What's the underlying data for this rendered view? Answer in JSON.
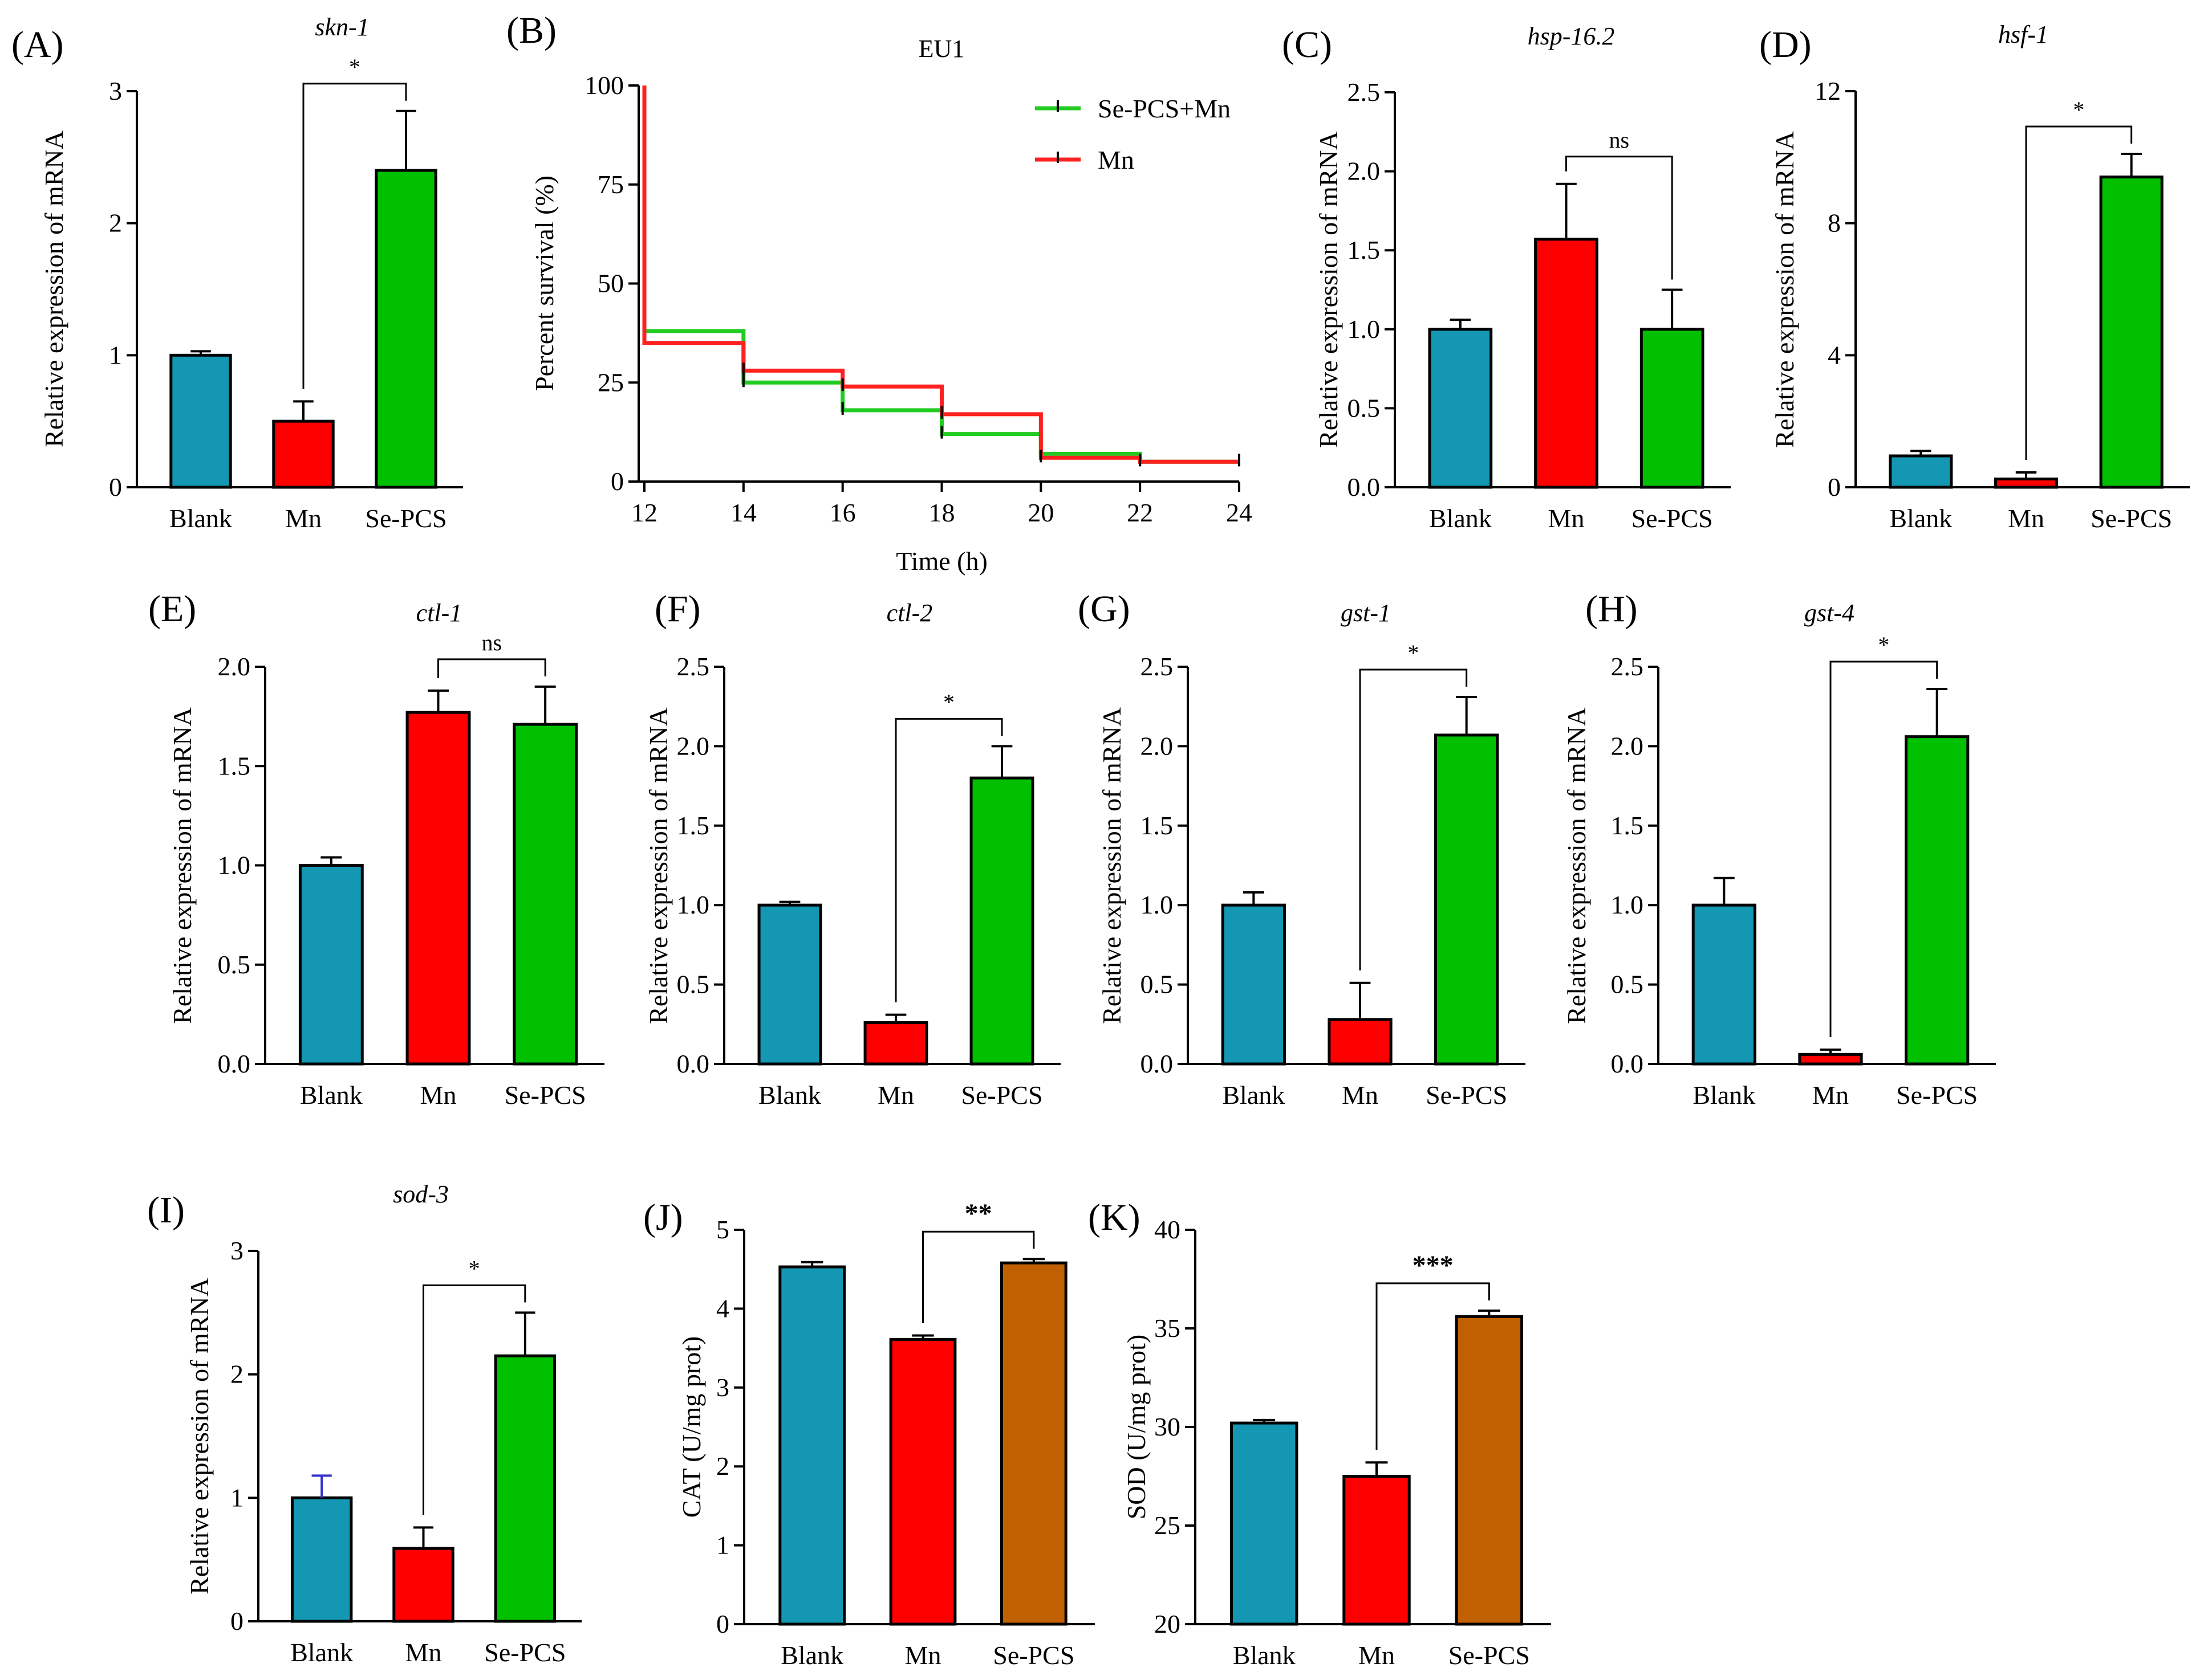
{
  "figure": {
    "colors": {
      "blank": "#1497b2",
      "mn": "#ff0000",
      "sepcs": "#00c000",
      "sepcs_brown": "#c06000",
      "survival_sepcs": "#22cc22",
      "survival_mn": "#ff2020",
      "outline": "#000000"
    }
  },
  "chart_data": [
    {
      "id": "A",
      "type": "bar",
      "panel_label": "(A)",
      "title": "skn-1",
      "title_italic": true,
      "ylabel": "Relative expression of mRNA",
      "ylim": [
        0,
        3
      ],
      "yticks": [
        "0",
        "1",
        "2",
        "3"
      ],
      "ytick_values": [
        0,
        1,
        2,
        3
      ],
      "categories": [
        "Blank",
        "Mn",
        "Se-PCS"
      ],
      "values": [
        1.0,
        0.5,
        2.4
      ],
      "errors": [
        0.03,
        0.15,
        0.45
      ],
      "colors": [
        "#1497b2",
        "#ff0000",
        "#00c000"
      ],
      "comparison": {
        "from": 1,
        "to": 2,
        "label": "*"
      }
    },
    {
      "id": "B",
      "type": "line",
      "panel_label": "(B)",
      "title": "EU1",
      "xlabel": "Time (h)",
      "ylabel": "Percent survival (%)",
      "xlim": [
        12,
        24
      ],
      "ylim": [
        0,
        100
      ],
      "xticks": [
        "12",
        "14",
        "16",
        "18",
        "20",
        "22",
        "24"
      ],
      "xtick_values": [
        12,
        14,
        16,
        18,
        20,
        22,
        24
      ],
      "yticks": [
        "0",
        "25",
        "50",
        "75",
        "100"
      ],
      "ytick_values": [
        0,
        25,
        50,
        75,
        100
      ],
      "series": [
        {
          "name": "Se-PCS+Mn",
          "color": "#22cc22",
          "x": [
            12,
            12,
            14,
            16,
            18,
            20,
            22,
            24
          ],
          "y": [
            100,
            38,
            25,
            18,
            12,
            7,
            5,
            5
          ]
        },
        {
          "name": "Mn",
          "color": "#ff2020",
          "x": [
            12,
            12,
            14,
            16,
            18,
            20,
            22,
            24
          ],
          "y": [
            100,
            35,
            28,
            24,
            17,
            6,
            5,
            5
          ]
        }
      ]
    },
    {
      "id": "C",
      "type": "bar",
      "panel_label": "(C)",
      "title": "hsp-16.2",
      "title_italic": true,
      "ylabel": "Relative expression of mRNA",
      "ylim": [
        0,
        2.5
      ],
      "yticks": [
        "0.0",
        "0.5",
        "1.0",
        "1.5",
        "2.0",
        "2.5"
      ],
      "ytick_values": [
        0,
        0.5,
        1,
        1.5,
        2,
        2.5
      ],
      "categories": [
        "Blank",
        "Mn",
        "Se-PCS"
      ],
      "values": [
        1.0,
        1.57,
        1.0
      ],
      "errors": [
        0.06,
        0.35,
        0.25
      ],
      "colors": [
        "#1497b2",
        "#ff0000",
        "#00c000"
      ],
      "comparison": {
        "from": 1,
        "to": 2,
        "label": "ns"
      }
    },
    {
      "id": "D",
      "type": "bar",
      "panel_label": "(D)",
      "title": "hsf-1",
      "title_italic": true,
      "ylabel": "Relative expression of mRNA",
      "ylim": [
        0,
        12
      ],
      "yticks": [
        "0",
        "4",
        "8",
        "12"
      ],
      "ytick_values": [
        0,
        4,
        8,
        12
      ],
      "categories": [
        "Blank",
        "Mn",
        "Se-PCS"
      ],
      "values": [
        0.95,
        0.25,
        9.4
      ],
      "errors": [
        0.15,
        0.2,
        0.7
      ],
      "colors": [
        "#1497b2",
        "#ff0000",
        "#00c000"
      ],
      "comparison": {
        "from": 1,
        "to": 2,
        "label": "*"
      }
    },
    {
      "id": "E",
      "type": "bar",
      "panel_label": "(E)",
      "title": "ctl-1",
      "title_italic": true,
      "ylabel": "Relative expression of mRNA",
      "ylim": [
        0,
        2.0
      ],
      "yticks": [
        "0.0",
        "0.5",
        "1.0",
        "1.5",
        "2.0"
      ],
      "ytick_values": [
        0,
        0.5,
        1,
        1.5,
        2
      ],
      "categories": [
        "Blank",
        "Mn",
        "Se-PCS"
      ],
      "values": [
        1.0,
        1.77,
        1.71
      ],
      "errors": [
        0.04,
        0.11,
        0.19
      ],
      "colors": [
        "#1497b2",
        "#ff0000",
        "#00c000"
      ],
      "comparison": {
        "from": 1,
        "to": 2,
        "label": "ns"
      }
    },
    {
      "id": "F",
      "type": "bar",
      "panel_label": "(F)",
      "title": "ctl-2",
      "title_italic": true,
      "ylabel": "Relative expression of mRNA",
      "ylim": [
        0,
        2.5
      ],
      "yticks": [
        "0.0",
        "0.5",
        "1.0",
        "1.5",
        "2.0",
        "2.5"
      ],
      "ytick_values": [
        0,
        0.5,
        1,
        1.5,
        2,
        2.5
      ],
      "categories": [
        "Blank",
        "Mn",
        "Se-PCS"
      ],
      "values": [
        1.0,
        0.26,
        1.8
      ],
      "errors": [
        0.02,
        0.05,
        0.2
      ],
      "colors": [
        "#1497b2",
        "#ff0000",
        "#00c000"
      ],
      "comparison": {
        "from": 1,
        "to": 2,
        "label": "*"
      }
    },
    {
      "id": "G",
      "type": "bar",
      "panel_label": "(G)",
      "title": "gst-1",
      "title_italic": true,
      "ylabel": "Relative expression of mRNA",
      "ylim": [
        0,
        2.5
      ],
      "yticks": [
        "0.0",
        "0.5",
        "1.0",
        "1.5",
        "2.0",
        "2.5"
      ],
      "ytick_values": [
        0,
        0.5,
        1,
        1.5,
        2,
        2.5
      ],
      "categories": [
        "Blank",
        "Mn",
        "Se-PCS"
      ],
      "values": [
        1.0,
        0.28,
        2.07
      ],
      "errors": [
        0.08,
        0.23,
        0.24
      ],
      "colors": [
        "#1497b2",
        "#ff0000",
        "#00c000"
      ],
      "comparison": {
        "from": 1,
        "to": 2,
        "label": "*"
      }
    },
    {
      "id": "H",
      "type": "bar",
      "panel_label": "(H)",
      "title": "gst-4",
      "title_italic": true,
      "ylabel": "Relative expression of mRNA",
      "ylim": [
        0,
        2.5
      ],
      "yticks": [
        "0.0",
        "0.5",
        "1.0",
        "1.5",
        "2.0",
        "2.5"
      ],
      "ytick_values": [
        0,
        0.5,
        1,
        1.5,
        2,
        2.5
      ],
      "categories": [
        "Blank",
        "Mn",
        "Se-PCS"
      ],
      "values": [
        1.0,
        0.06,
        2.06
      ],
      "errors": [
        0.17,
        0.03,
        0.3
      ],
      "colors": [
        "#1497b2",
        "#ff0000",
        "#00c000"
      ],
      "comparison": {
        "from": 1,
        "to": 2,
        "label": "*"
      }
    },
    {
      "id": "I",
      "type": "bar",
      "panel_label": "(I)",
      "title": "sod-3",
      "title_italic": true,
      "ylabel": "Relative expression of mRNA",
      "ylim": [
        0,
        3
      ],
      "yticks": [
        "0",
        "1",
        "2",
        "3"
      ],
      "ytick_values": [
        0,
        1,
        2,
        3
      ],
      "categories": [
        "Blank",
        "Mn",
        "Se-PCS"
      ],
      "values": [
        1.0,
        0.59,
        2.15
      ],
      "errors": [
        0.18,
        0.17,
        0.35
      ],
      "colors": [
        "#1497b2",
        "#ff0000",
        "#00c000"
      ],
      "error_colors": [
        "#3333cc",
        "#000000",
        "#000000"
      ],
      "comparison": {
        "from": 1,
        "to": 2,
        "label": "*"
      }
    },
    {
      "id": "J",
      "type": "bar",
      "panel_label": "(J)",
      "title": "",
      "ylabel": "CAT (U/mg prot)",
      "ylim": [
        0,
        5
      ],
      "yticks": [
        "0",
        "1",
        "2",
        "3",
        "4",
        "5"
      ],
      "ytick_values": [
        0,
        1,
        2,
        3,
        4,
        5
      ],
      "categories": [
        "Blank",
        "Mn",
        "Se-PCS"
      ],
      "values": [
        4.53,
        3.61,
        4.58
      ],
      "errors": [
        0.06,
        0.05,
        0.05
      ],
      "colors": [
        "#1497b2",
        "#ff0000",
        "#c06000"
      ],
      "comparison": {
        "from": 1,
        "to": 2,
        "label": "**",
        "bold": true
      }
    },
    {
      "id": "K",
      "type": "bar",
      "panel_label": "(K)",
      "title": "",
      "ylabel": "SOD (U/mg prot)",
      "ylim": [
        20,
        40
      ],
      "yticks": [
        "20",
        "25",
        "30",
        "35",
        "40"
      ],
      "ytick_values": [
        20,
        25,
        30,
        35,
        40
      ],
      "categories": [
        "Blank",
        "Mn",
        "Se-PCS"
      ],
      "values": [
        30.2,
        27.5,
        35.6
      ],
      "errors": [
        0.15,
        0.7,
        0.3
      ],
      "colors": [
        "#1497b2",
        "#ff0000",
        "#c06000"
      ],
      "comparison": {
        "from": 1,
        "to": 2,
        "label": "***",
        "bold": true
      }
    }
  ]
}
